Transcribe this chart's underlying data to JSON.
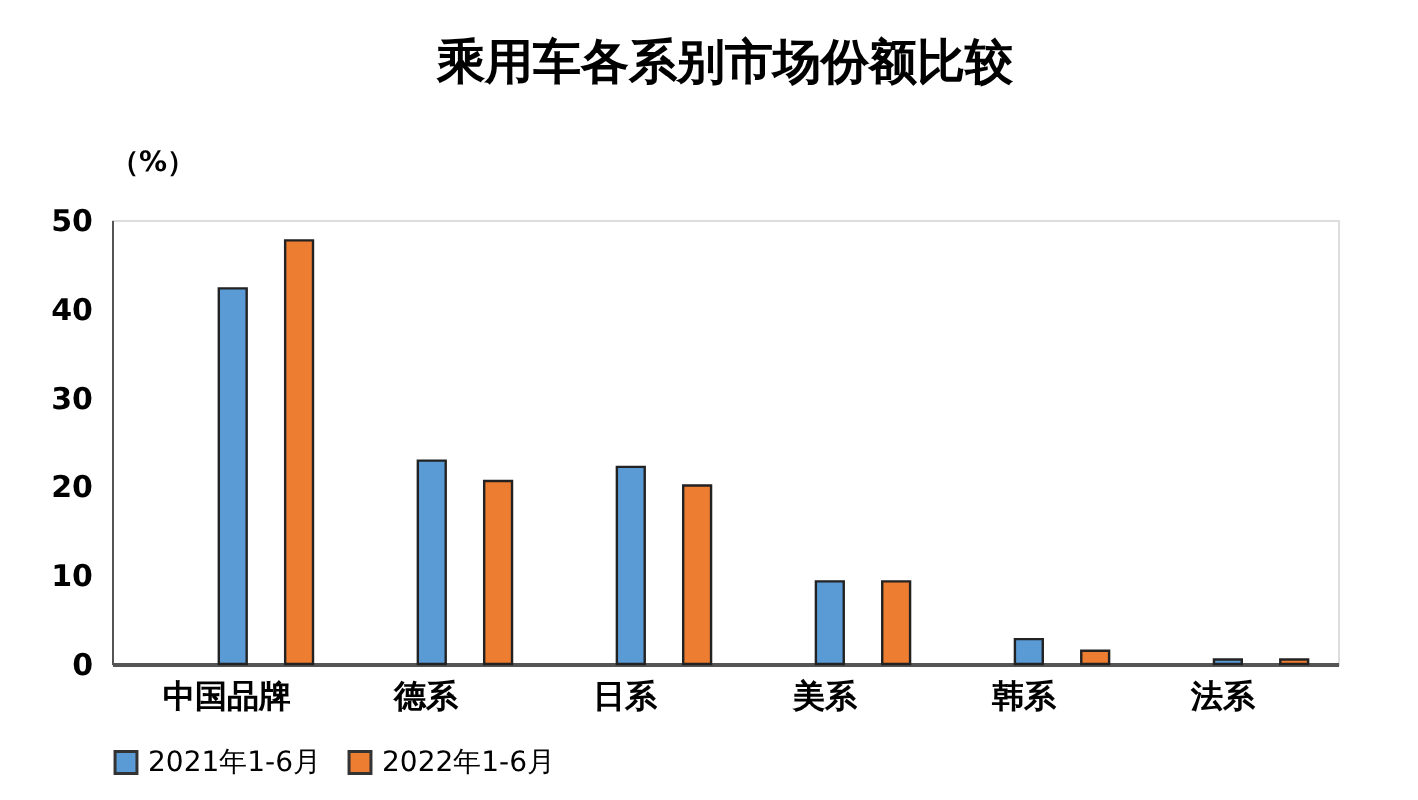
{
  "chart_data": {
    "type": "bar",
    "title": "乘用车各系别市场份额比较",
    "ylabel": "（%）",
    "categories": [
      "中国品牌",
      "德系",
      "日系",
      "美系",
      "韩系",
      "法系"
    ],
    "series": [
      {
        "name": "2021年1-6月",
        "color": "#5b9bd5",
        "values": [
          42.3,
          22.9,
          22.2,
          9.3,
          2.8,
          0.5
        ]
      },
      {
        "name": "2022年1-6月",
        "color": "#ed7d31",
        "values": [
          47.7,
          20.6,
          20.1,
          9.3,
          1.5,
          0.5
        ]
      }
    ],
    "ylim": [
      0,
      50
    ],
    "yticks": [
      0,
      10,
      20,
      30,
      40,
      50
    ],
    "grid": false,
    "legend": "bottom"
  }
}
